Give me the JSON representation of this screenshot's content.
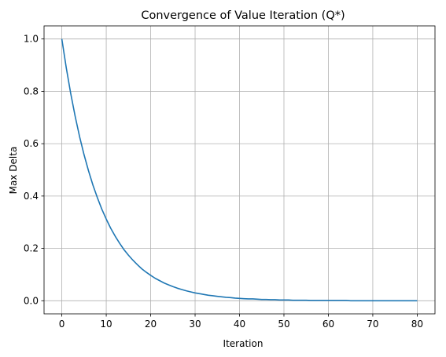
{
  "chart_data": {
    "type": "line",
    "title": "Convergence of Value Iteration (Q*)",
    "xlabel": "Iteration",
    "ylabel": "Max Delta",
    "xlim": [
      -4,
      84
    ],
    "ylim": [
      -0.05,
      1.05
    ],
    "xticks": [
      0,
      10,
      20,
      30,
      40,
      50,
      60,
      70,
      80
    ],
    "yticks": [
      0.0,
      0.2,
      0.4,
      0.6,
      0.8,
      1.0
    ],
    "xtick_labels": [
      "0",
      "10",
      "20",
      "30",
      "40",
      "50",
      "60",
      "70",
      "80"
    ],
    "ytick_labels": [
      "0.0",
      "0.2",
      "0.4",
      "0.6",
      "0.8",
      "1.0"
    ],
    "grid": true,
    "series": [
      {
        "color": "#1f77b4",
        "x": [
          0,
          1,
          2,
          3,
          4,
          5,
          6,
          7,
          8,
          9,
          10,
          11,
          12,
          13,
          14,
          15,
          16,
          17,
          18,
          19,
          20,
          21,
          22,
          23,
          24,
          25,
          26,
          27,
          28,
          29,
          30,
          31,
          32,
          33,
          34,
          35,
          36,
          37,
          38,
          39,
          40,
          41,
          42,
          43,
          44,
          45,
          46,
          47,
          48,
          49,
          50,
          51,
          52,
          53,
          54,
          55,
          56,
          57,
          58,
          59,
          60,
          61,
          62,
          63,
          64,
          65,
          66,
          67,
          68,
          69,
          70,
          71,
          72,
          73,
          74,
          75,
          76,
          77,
          78,
          79,
          80
        ],
        "y": [
          1.0,
          0.89,
          0.792,
          0.705,
          0.627,
          0.558,
          0.497,
          0.442,
          0.394,
          0.35,
          0.312,
          0.277,
          0.247,
          0.22,
          0.195,
          0.174,
          0.155,
          0.138,
          0.122,
          0.109,
          0.097,
          0.086,
          0.077,
          0.068,
          0.061,
          0.054,
          0.048,
          0.043,
          0.038,
          0.034,
          0.03,
          0.027,
          0.024,
          0.021,
          0.019,
          0.017,
          0.015,
          0.013,
          0.012,
          0.01,
          0.009,
          0.008,
          0.007,
          0.007,
          0.006,
          0.005,
          0.005,
          0.004,
          0.004,
          0.003,
          0.003,
          0.003,
          0.002,
          0.002,
          0.002,
          0.002,
          0.001,
          0.001,
          0.001,
          0.001,
          0.001,
          0.001,
          0.001,
          0.001,
          0.001,
          0.0,
          0.0,
          0.0,
          0.0,
          0.0,
          0.0,
          0.0,
          0.0,
          0.0,
          0.0,
          0.0,
          0.0,
          0.0,
          0.0,
          0.0,
          0.0
        ]
      }
    ]
  }
}
